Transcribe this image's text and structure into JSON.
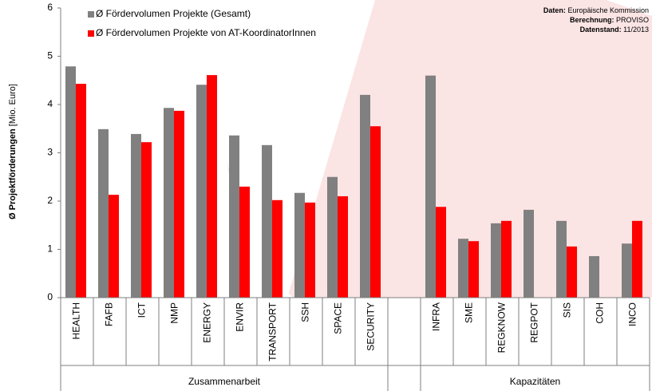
{
  "chart_data": {
    "type": "bar",
    "y_label_bold": "Ø Projektförderungen",
    "y_label_rest": "[Mio. Euro]",
    "annotations": [
      {
        "label": "Daten:",
        "text": "Europäische Kommission"
      },
      {
        "label": "Berechnung:",
        "text": "PROVISO"
      },
      {
        "label": "Datenstand:",
        "text": "11/2013"
      }
    ],
    "categories": [
      "HEALTH",
      "FAFB",
      "ICT",
      "NMP",
      "ENERGY",
      "ENVIR",
      "TRANSPORT",
      "SSH",
      "SPACE",
      "SECURITY",
      null,
      "INFRA",
      "SME",
      "REGKNOW",
      "REGPOT",
      "SIS",
      "COH",
      "INCO"
    ],
    "group_labels": [
      "Zusammenarbeit",
      "Kapazitäten"
    ],
    "series": [
      {
        "name": "Ø Fördervolumen Projekte (Gesamt)",
        "color": "#808080",
        "values": [
          4.79,
          3.49,
          3.39,
          3.93,
          4.41,
          3.36,
          3.16,
          2.17,
          2.5,
          4.2,
          null,
          4.6,
          1.22,
          1.54,
          1.82,
          1.59,
          0.86,
          1.12
        ]
      },
      {
        "name": "Ø Fördervolumen Projekte von AT-KoordinatorInnen",
        "color": "#ff0000",
        "values": [
          4.43,
          2.13,
          3.22,
          3.87,
          4.61,
          2.3,
          2.02,
          1.97,
          2.1,
          3.55,
          null,
          1.88,
          1.17,
          1.59,
          null,
          1.06,
          null,
          1.59
        ]
      }
    ],
    "ylim": [
      0,
      6
    ],
    "yticks": [
      0,
      1,
      2,
      3,
      4,
      5,
      6
    ],
    "grid": false
  }
}
